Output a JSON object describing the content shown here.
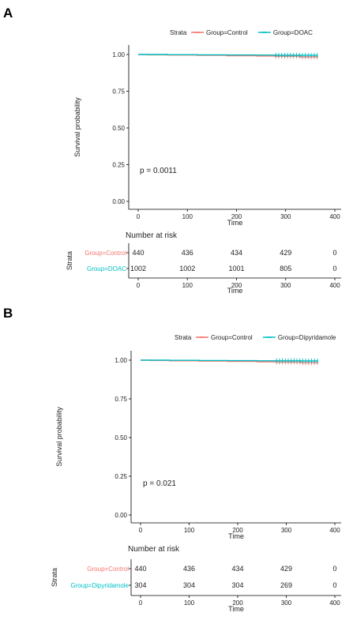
{
  "chart_data": [
    {
      "panel": "A",
      "type": "line",
      "legend": {
        "title": "Strata",
        "placement": "top"
      },
      "xlabel": "Time",
      "ylabel": "Survival probability",
      "xlim": [
        0,
        400
      ],
      "ylim": [
        0,
        1
      ],
      "xticks": [
        "0",
        "100",
        "200",
        "300",
        "400"
      ],
      "yticks": [
        "0.00",
        "0.25",
        "0.50",
        "0.75",
        "1.00"
      ],
      "grid": false,
      "pvalue": "p = 0.0011",
      "series": [
        {
          "name": "Group=Control",
          "color": "#f8766d",
          "x": [
            0,
            20,
            60,
            120,
            180,
            240,
            280,
            330,
            365
          ],
          "y": [
            1.0,
            0.998,
            0.996,
            0.994,
            0.992,
            0.99,
            0.988,
            0.984,
            0.98
          ]
        },
        {
          "name": "Group=DOAC",
          "color": "#00bfc4",
          "x": [
            0,
            20,
            60,
            120,
            180,
            240,
            280,
            330,
            365
          ],
          "y": [
            1.0,
            1.0,
            0.999,
            0.998,
            0.997,
            0.996,
            0.995,
            0.994,
            0.993
          ]
        }
      ],
      "risk_table": {
        "title": "Number at risk",
        "axis_title": "Strata",
        "xlabel": "Time",
        "times": [
          0,
          100,
          200,
          300,
          400
        ],
        "rows": [
          {
            "label": "Group=Control",
            "color": "#f8766d",
            "counts": [
              "440",
              "436",
              "434",
              "429",
              "0"
            ]
          },
          {
            "label": "Group=DOAC",
            "color": "#00bfc4",
            "counts": [
              "1002",
              "1002",
              "1001",
              "805",
              "0"
            ]
          }
        ]
      }
    },
    {
      "panel": "B",
      "type": "line",
      "legend": {
        "title": "Strata",
        "placement": "top"
      },
      "xlabel": "Time",
      "ylabel": "Survival probability",
      "xlim": [
        0,
        400
      ],
      "ylim": [
        0,
        1
      ],
      "xticks": [
        "0",
        "100",
        "200",
        "300",
        "400"
      ],
      "yticks": [
        "0.00",
        "0.25",
        "0.50",
        "0.75",
        "1.00"
      ],
      "grid": false,
      "pvalue": "p = 0.021",
      "series": [
        {
          "name": "Group=Control",
          "color": "#f8766d",
          "x": [
            0,
            20,
            60,
            120,
            180,
            240,
            280,
            330,
            365
          ],
          "y": [
            1.0,
            0.998,
            0.996,
            0.994,
            0.992,
            0.99,
            0.988,
            0.984,
            0.98
          ]
        },
        {
          "name": "Group=Dipyridamole",
          "color": "#00bfc4",
          "x": [
            0,
            20,
            60,
            120,
            180,
            240,
            280,
            330,
            365
          ],
          "y": [
            1.0,
            1.0,
            0.999,
            0.998,
            0.997,
            0.996,
            0.996,
            0.995,
            0.994
          ]
        }
      ],
      "risk_table": {
        "title": "Number at risk",
        "axis_title": "Strata",
        "xlabel": "Time",
        "times": [
          0,
          100,
          200,
          300,
          400
        ],
        "rows": [
          {
            "label": "Group=Control",
            "color": "#f8766d",
            "counts": [
              "440",
              "436",
              "434",
              "429",
              "0"
            ]
          },
          {
            "label": "Group=Dipyridamole",
            "color": "#00bfc4",
            "counts": [
              "304",
              "304",
              "304",
              "269",
              "0"
            ]
          }
        ]
      }
    }
  ]
}
